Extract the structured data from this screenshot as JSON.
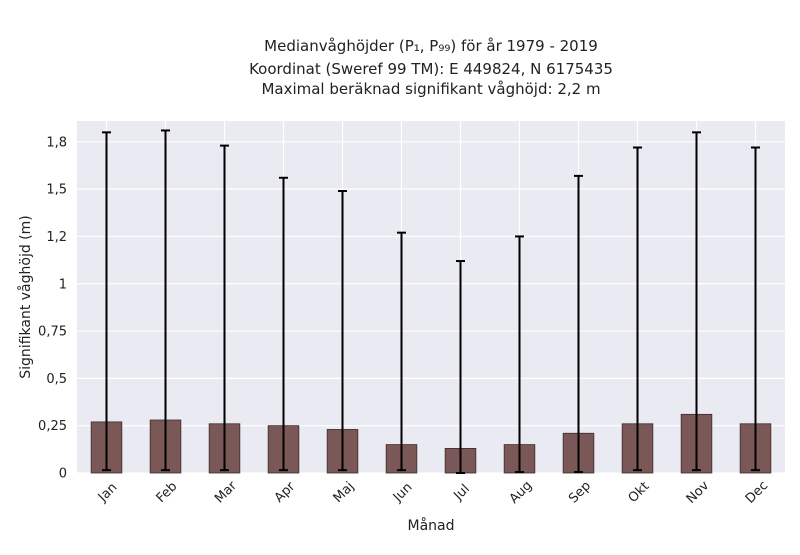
{
  "chart_data": {
    "type": "bar",
    "title_lines": [
      "Medianvåghöjder (P₁, P₉₉) för år 1979 - 2019",
      "Koordinat (Sweref 99 TM): E 449824, N 6175435",
      "Maximal beräknad signifikant våghöjd: 2,2 m"
    ],
    "xlabel": "Månad",
    "ylabel": "Signifikant våghöjd (m)",
    "categories": [
      "Jan",
      "Feb",
      "Mar",
      "Apr",
      "Maj",
      "Jun",
      "Jul",
      "Aug",
      "Sep",
      "Okt",
      "Nov",
      "Dec"
    ],
    "values": [
      0.27,
      0.28,
      0.26,
      0.25,
      0.23,
      0.15,
      0.13,
      0.15,
      0.21,
      0.26,
      0.31,
      0.26
    ],
    "err_low": [
      0.015,
      0.015,
      0.015,
      0.015,
      0.015,
      0.015,
      0.0,
      0.005,
      0.005,
      0.015,
      0.015,
      0.015
    ],
    "err_high": [
      1.8,
      1.81,
      1.73,
      1.56,
      1.49,
      1.27,
      1.12,
      1.25,
      1.57,
      1.72,
      1.8,
      1.72
    ],
    "ylim": [
      0,
      1.86
    ],
    "yticks": [
      0,
      0.25,
      0.5,
      0.75,
      1,
      1.25,
      1.5,
      1.75
    ],
    "ytick_labels": [
      "0",
      "0,25",
      "0,5",
      "0,75",
      "1",
      "1,2",
      "1,5",
      "1,8"
    ],
    "grid": true,
    "bar_color": "#7b5858",
    "bar_edge_color": "#3b2a2a",
    "errorbar_color": "#000000",
    "plot_background": "#eaeaf2",
    "grid_color": "#ffffff"
  }
}
